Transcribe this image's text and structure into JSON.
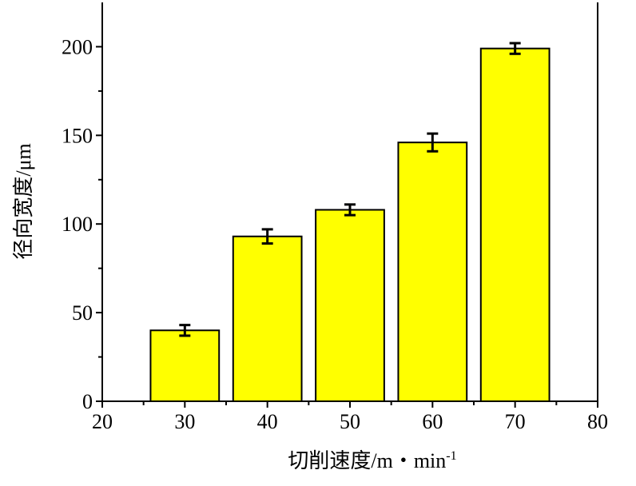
{
  "chart_data": {
    "type": "bar",
    "xlabel": "切削速度/m・min",
    "xlabel_superscript": "-1",
    "ylabel": "径向宽度/μm",
    "x": [
      30,
      40,
      50,
      60,
      70
    ],
    "values": [
      40,
      93,
      108,
      146,
      199
    ],
    "error": [
      3,
      4,
      3,
      5,
      3
    ],
    "xlim": [
      20,
      80
    ],
    "ylim": [
      0,
      225
    ],
    "xticks": [
      "20",
      "30",
      "40",
      "50",
      "60",
      "70",
      "80"
    ],
    "xtick_values": [
      20,
      30,
      40,
      50,
      60,
      70,
      80
    ],
    "yticks": [
      "0",
      "50",
      "100",
      "150",
      "200"
    ],
    "ytick_values": [
      0,
      50,
      100,
      150,
      200
    ],
    "bar_color": "#ffff00",
    "edge_color": "#000000",
    "grid": false,
    "legend": "none"
  }
}
